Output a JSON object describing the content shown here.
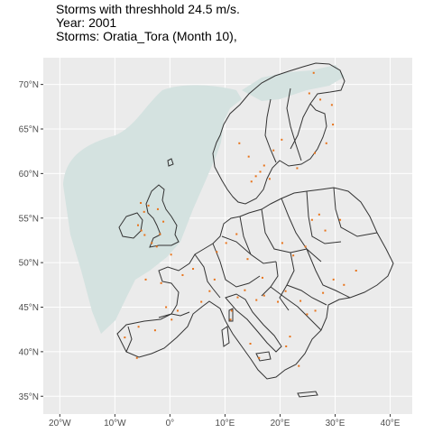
{
  "titles": {
    "line1": "Storms with threshhold 24.5 m/s.",
    "line2": "Year: 2001",
    "line3": "Storms: Oratia_Tora (Month 10),"
  },
  "map": {
    "panel_background": "#ebebeb",
    "grid_color": "#ffffff",
    "ocean_shade_color": "#d4e2e0",
    "coastline_color": "#333333",
    "storm_point_color": "#e8731a",
    "lon_range": [
      -23,
      44
    ],
    "lat_range": [
      33,
      73
    ],
    "lat_ticks": [
      {
        "value": 70,
        "label": "70°N"
      },
      {
        "value": 65,
        "label": "65°N"
      },
      {
        "value": 60,
        "label": "60°N"
      },
      {
        "value": 55,
        "label": "55°N"
      },
      {
        "value": 50,
        "label": "50°N"
      },
      {
        "value": 45,
        "label": "45°N"
      },
      {
        "value": 40,
        "label": "40°N"
      },
      {
        "value": 35,
        "label": "35°N"
      }
    ],
    "lon_ticks": [
      {
        "value": -20,
        "label": "20°W"
      },
      {
        "value": -10,
        "label": "10°W"
      },
      {
        "value": 0,
        "label": "0°"
      },
      {
        "value": 10,
        "label": "10°E"
      },
      {
        "value": 20,
        "label": "20°E"
      },
      {
        "value": 30,
        "label": "30°E"
      },
      {
        "value": 40,
        "label": "40°E"
      }
    ],
    "storm_points": [
      [
        -5.8,
        54.2
      ],
      [
        -5.2,
        53.6
      ],
      [
        -4.6,
        53.1
      ],
      [
        -3.3,
        52.2
      ],
      [
        -2.2,
        56.0
      ],
      [
        -1.2,
        54.6
      ],
      [
        -3.9,
        56.4
      ],
      [
        -1.8,
        53.2
      ],
      [
        -5.3,
        56.7
      ],
      [
        -4.7,
        55.7
      ],
      [
        -2.4,
        51.8
      ],
      [
        0.2,
        50.9
      ],
      [
        -1.6,
        47.7
      ],
      [
        -0.7,
        45.0
      ],
      [
        2.3,
        48.6
      ],
      [
        4.2,
        49.3
      ],
      [
        1.4,
        44.6
      ],
      [
        0.3,
        43.6
      ],
      [
        5.7,
        45.6
      ],
      [
        -4.4,
        48.1
      ],
      [
        -5.7,
        42.8
      ],
      [
        -2.7,
        42.4
      ],
      [
        -6.0,
        39.3
      ],
      [
        -8.2,
        41.6
      ],
      [
        7.2,
        46.8
      ],
      [
        8.1,
        48.1
      ],
      [
        12.3,
        46.1
      ],
      [
        13.6,
        46.9
      ],
      [
        11.2,
        44.6
      ],
      [
        15.7,
        45.8
      ],
      [
        17.1,
        46.3
      ],
      [
        19.6,
        45.6
      ],
      [
        21.0,
        46.8
      ],
      [
        23.7,
        45.7
      ],
      [
        24.9,
        44.2
      ],
      [
        15.6,
        59.7
      ],
      [
        16.4,
        60.2
      ],
      [
        17.1,
        60.9
      ],
      [
        14.8,
        59.1
      ],
      [
        18.1,
        59.4
      ],
      [
        18.8,
        62.6
      ],
      [
        20.3,
        63.8
      ],
      [
        14.3,
        61.9
      ],
      [
        12.6,
        63.4
      ],
      [
        23.1,
        60.6
      ],
      [
        26.3,
        62.3
      ],
      [
        28.4,
        63.4
      ],
      [
        29.4,
        67.7
      ],
      [
        26.1,
        71.3
      ],
      [
        25.3,
        69.0
      ],
      [
        27.3,
        68.3
      ],
      [
        29.6,
        65.5
      ],
      [
        25.8,
        54.8
      ],
      [
        28.2,
        53.6
      ],
      [
        30.9,
        54.8
      ],
      [
        27.1,
        55.4
      ],
      [
        33.8,
        49.1
      ],
      [
        20.4,
        52.2
      ],
      [
        22.4,
        50.8
      ],
      [
        24.6,
        51.8
      ],
      [
        14.1,
        50.4
      ],
      [
        16.8,
        48.3
      ],
      [
        10.2,
        52.2
      ],
      [
        12.1,
        53.2
      ],
      [
        8.5,
        51.2
      ],
      [
        29.7,
        48.1
      ],
      [
        27.8,
        46.6
      ],
      [
        26.4,
        44.6
      ],
      [
        31.6,
        47.5
      ],
      [
        23.4,
        38.4
      ],
      [
        21.1,
        40.6
      ],
      [
        14.6,
        40.9
      ],
      [
        16.2,
        39.3
      ],
      [
        11.0,
        43.6
      ],
      [
        21.8,
        41.7
      ]
    ]
  }
}
